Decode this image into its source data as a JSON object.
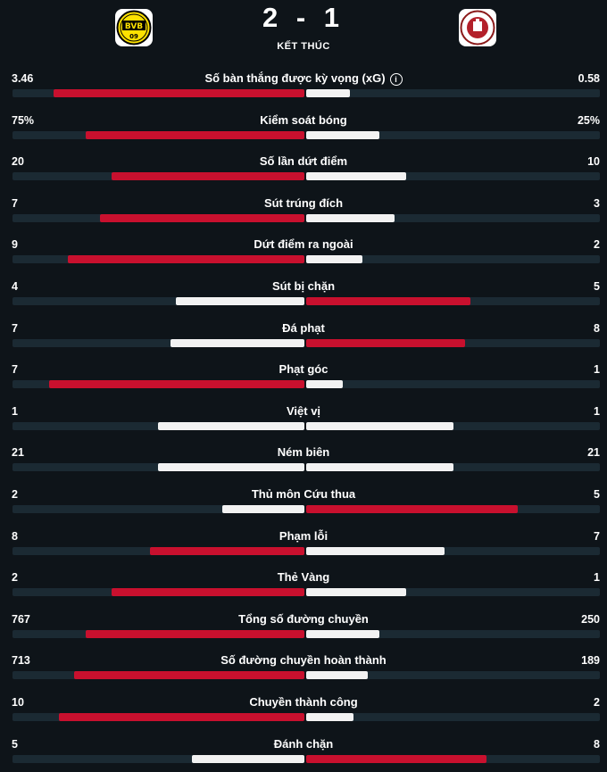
{
  "match": {
    "score": "2 - 1",
    "status": "KẾT THÚC",
    "home_logo": "bvb-logo",
    "away_logo": "st-pauli-logo"
  },
  "colors": {
    "background": "#0e1419",
    "track": "#1b2a33",
    "leader_bar": "#c8102e",
    "other_bar": "#f2f2f2"
  },
  "stats": [
    {
      "label": "Số bàn thắng được kỳ vọng (xG)",
      "home": "3.46",
      "away": "0.58",
      "home_share": 0.86,
      "away_share": 0.15,
      "leader": "home",
      "info_icon": true
    },
    {
      "label": "Kiểm soát bóng",
      "home": "75%",
      "away": "25%",
      "home_share": 0.75,
      "away_share": 0.25,
      "leader": "home"
    },
    {
      "label": "Số lần dứt điểm",
      "home": "20",
      "away": "10",
      "home_share": 0.66,
      "away_share": 0.34,
      "leader": "home"
    },
    {
      "label": "Sút trúng đích",
      "home": "7",
      "away": "3",
      "home_share": 0.7,
      "away_share": 0.3,
      "leader": "home"
    },
    {
      "label": "Dứt điểm ra ngoài",
      "home": "9",
      "away": "2",
      "home_share": 0.81,
      "away_share": 0.19,
      "leader": "home"
    },
    {
      "label": "Sút bị chặn",
      "home": "4",
      "away": "5",
      "home_share": 0.44,
      "away_share": 0.56,
      "leader": "away"
    },
    {
      "label": "Đá phạt",
      "home": "7",
      "away": "8",
      "home_share": 0.46,
      "away_share": 0.54,
      "leader": "away"
    },
    {
      "label": "Phạt góc",
      "home": "7",
      "away": "1",
      "home_share": 0.875,
      "away_share": 0.125,
      "leader": "home"
    },
    {
      "label": "Việt vị",
      "home": "1",
      "away": "1",
      "home_share": 0.5,
      "away_share": 0.5,
      "leader": "none"
    },
    {
      "label": "Ném biên",
      "home": "21",
      "away": "21",
      "home_share": 0.5,
      "away_share": 0.5,
      "leader": "none"
    },
    {
      "label": "Thủ môn Cứu thua",
      "home": "2",
      "away": "5",
      "home_share": 0.28,
      "away_share": 0.72,
      "leader": "away"
    },
    {
      "label": "Phạm lỗi",
      "home": "8",
      "away": "7",
      "home_share": 0.53,
      "away_share": 0.47,
      "leader": "home"
    },
    {
      "label": "Thẻ Vàng",
      "home": "2",
      "away": "1",
      "home_share": 0.66,
      "away_share": 0.34,
      "leader": "home"
    },
    {
      "label": "Tổng số đường chuyền",
      "home": "767",
      "away": "250",
      "home_share": 0.75,
      "away_share": 0.25,
      "leader": "home"
    },
    {
      "label": "Số đường chuyền hoàn thành",
      "home": "713",
      "away": "189",
      "home_share": 0.79,
      "away_share": 0.21,
      "leader": "home"
    },
    {
      "label": "Chuyền thành công",
      "home": "10",
      "away": "2",
      "home_share": 0.84,
      "away_share": 0.16,
      "leader": "home"
    },
    {
      "label": "Đánh chặn",
      "home": "5",
      "away": "8",
      "home_share": 0.385,
      "away_share": 0.615,
      "leader": "away"
    }
  ]
}
